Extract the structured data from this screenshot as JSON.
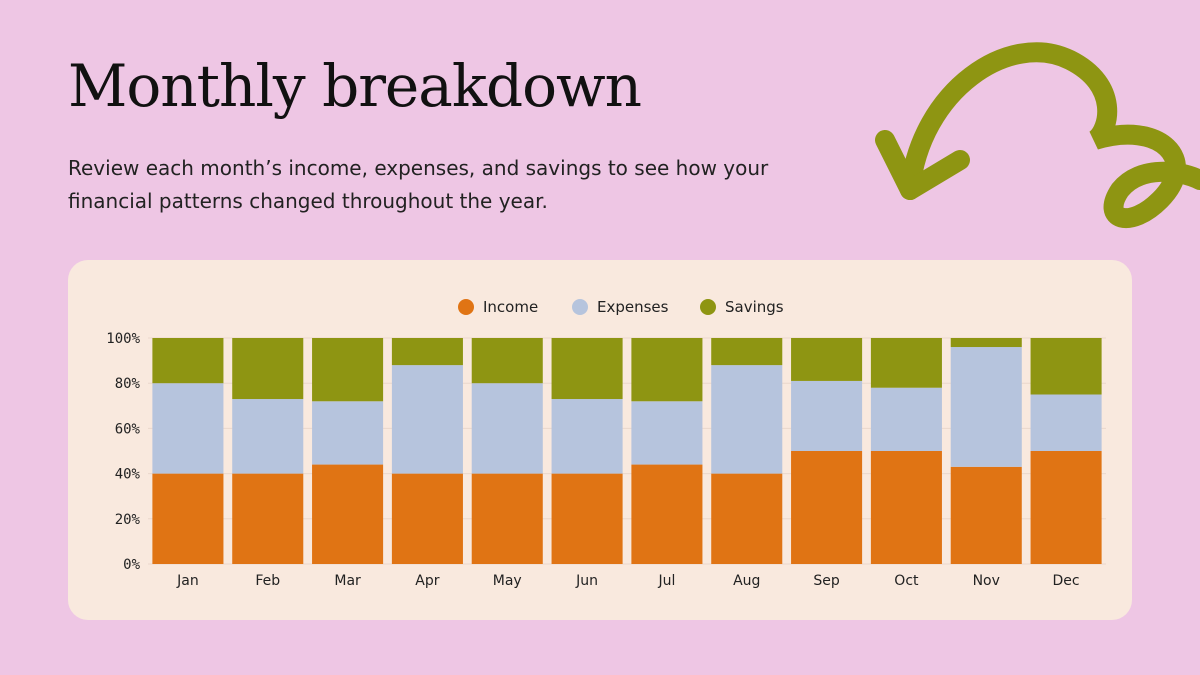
{
  "slide": {
    "title": "Monthly breakdown",
    "subtitle": "Review each month’s income, expenses, and savings to see how your financial patterns changed throughout the year."
  },
  "decoration": {
    "icon": "curly-arrow-icon",
    "color": "#8e9512"
  },
  "colors": {
    "background": "#eec6e4",
    "panel": "#f9e9de"
  },
  "chart_data": {
    "type": "bar",
    "stacked": true,
    "percent": true,
    "categories": [
      "Jan",
      "Feb",
      "Mar",
      "Apr",
      "May",
      "Jun",
      "Jul",
      "Aug",
      "Sep",
      "Oct",
      "Nov",
      "Dec"
    ],
    "series": [
      {
        "name": "Income",
        "color": "#e07414",
        "values": [
          40,
          40,
          44,
          40,
          40,
          40,
          44,
          40,
          50,
          50,
          43,
          50
        ]
      },
      {
        "name": "Expenses",
        "color": "#b6c4dd",
        "values": [
          40,
          33,
          28,
          48,
          40,
          33,
          28,
          48,
          31,
          28,
          53,
          25
        ]
      },
      {
        "name": "Savings",
        "color": "#8e9512",
        "values": [
          20,
          27,
          28,
          12,
          20,
          27,
          28,
          12,
          19,
          22,
          4,
          25
        ]
      }
    ],
    "ylim": [
      0,
      100
    ],
    "yticks": [
      "0%",
      "20%",
      "40%",
      "60%",
      "80%",
      "100%"
    ],
    "grid": true,
    "legend": "top-center"
  }
}
